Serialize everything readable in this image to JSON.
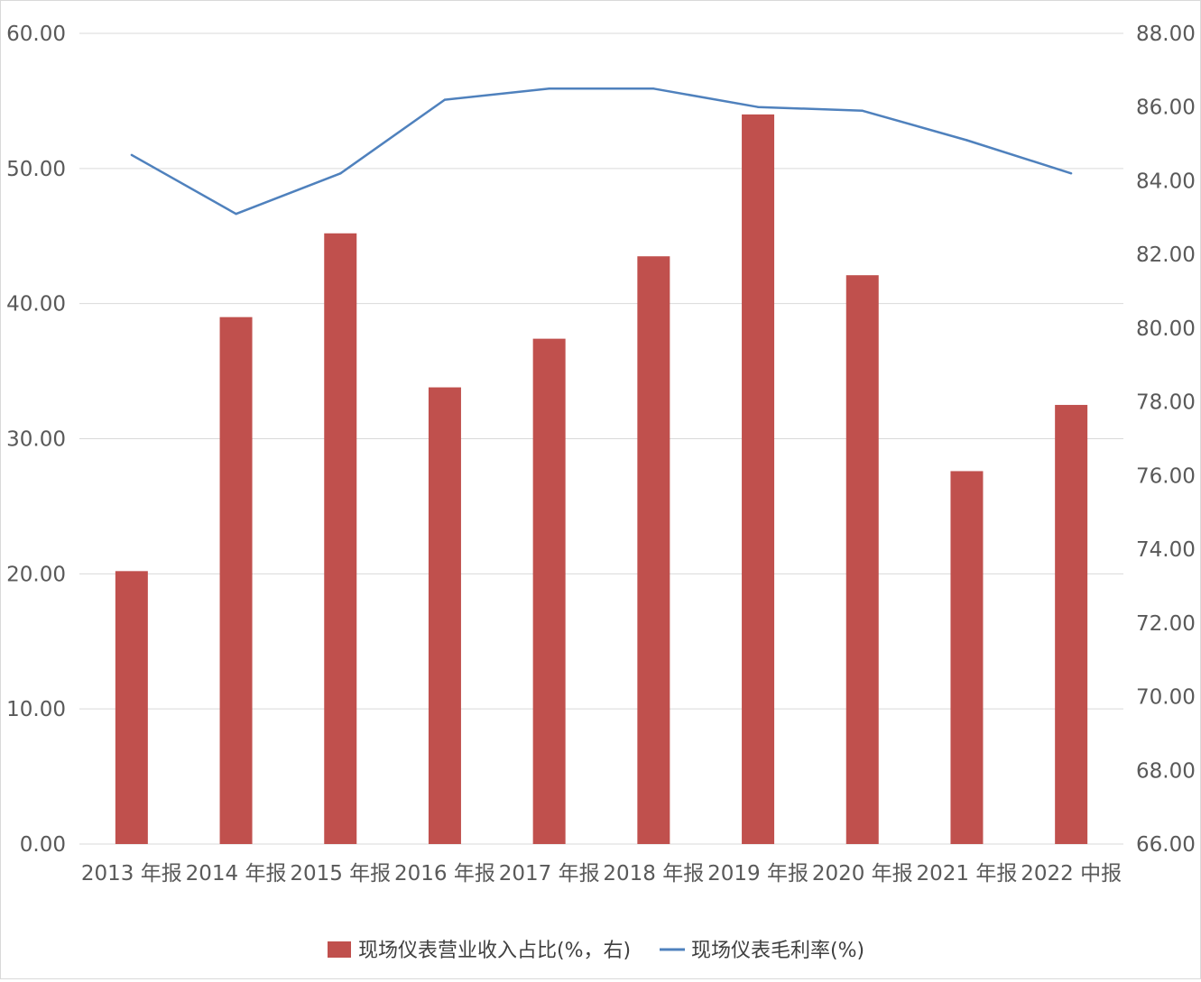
{
  "chart_data": {
    "type": "bar",
    "categories": [
      "2013 年报",
      "2014 年报",
      "2015 年报",
      "2016 年报",
      "2017 年报",
      "2018 年报",
      "2019 年报",
      "2020 年报",
      "2021 年报",
      "2022 中报"
    ],
    "series": [
      {
        "name": "现场仪表营业收入占比(%，右)",
        "type": "bar",
        "axis": "left",
        "color": "#C0504D",
        "values": [
          20.2,
          39.0,
          45.2,
          33.8,
          37.4,
          43.5,
          54.0,
          42.1,
          27.6,
          32.5
        ]
      },
      {
        "name": "现场仪表毛利率(%)",
        "type": "line",
        "axis": "right",
        "color": "#4F81BD",
        "values": [
          84.7,
          83.1,
          84.2,
          86.2,
          86.5,
          86.5,
          86.0,
          85.9,
          85.1,
          84.2
        ]
      }
    ],
    "y_left": {
      "min": 0,
      "max": 60,
      "ticks": [
        "0.00",
        "10.00",
        "20.00",
        "30.00",
        "40.00",
        "50.00",
        "60.00"
      ]
    },
    "y_right": {
      "min": 66,
      "max": 88,
      "ticks": [
        "66.00",
        "68.00",
        "70.00",
        "72.00",
        "74.00",
        "76.00",
        "78.00",
        "80.00",
        "82.00",
        "84.00",
        "86.00",
        "88.00"
      ]
    },
    "grid": true,
    "legend_position": "bottom",
    "gridline_color": "#d9d9d9"
  }
}
